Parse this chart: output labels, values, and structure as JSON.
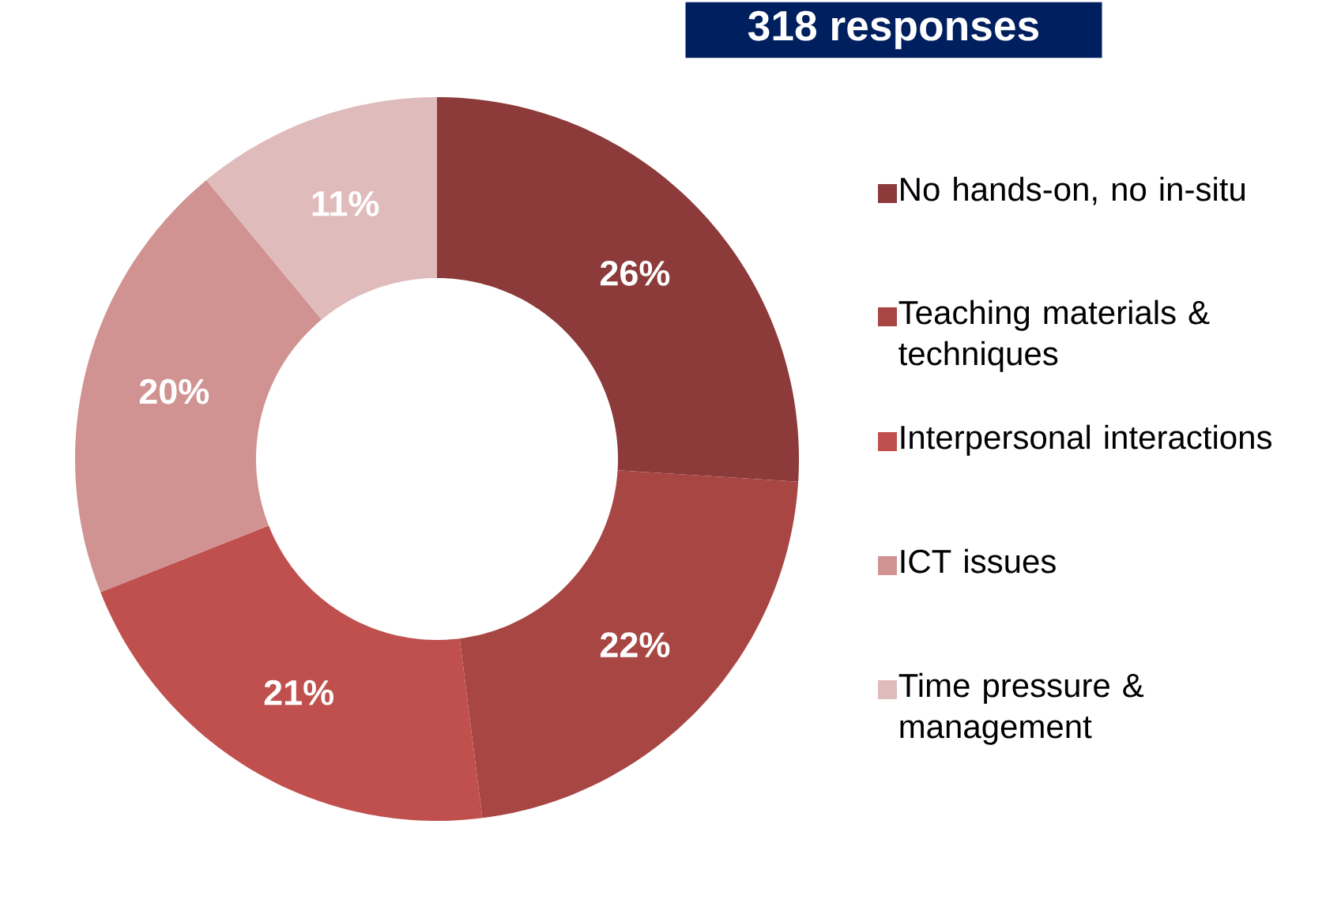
{
  "chart_data": {
    "type": "donut",
    "title": "318 responses",
    "categories": [
      "No hands-on, no in-situ",
      "Teaching materials & techniques",
      "Interpersonal interactions",
      "ICT issues",
      "Time pressure & management"
    ],
    "values": [
      26,
      22,
      21,
      20,
      11
    ],
    "colors": [
      "#8c3a3a",
      "#a84644",
      "#c0504d",
      "#d09392",
      "#e0bbbb"
    ],
    "value_labels": [
      "26%",
      "22%",
      "21%",
      "20%",
      "11%"
    ],
    "legend": "right"
  }
}
